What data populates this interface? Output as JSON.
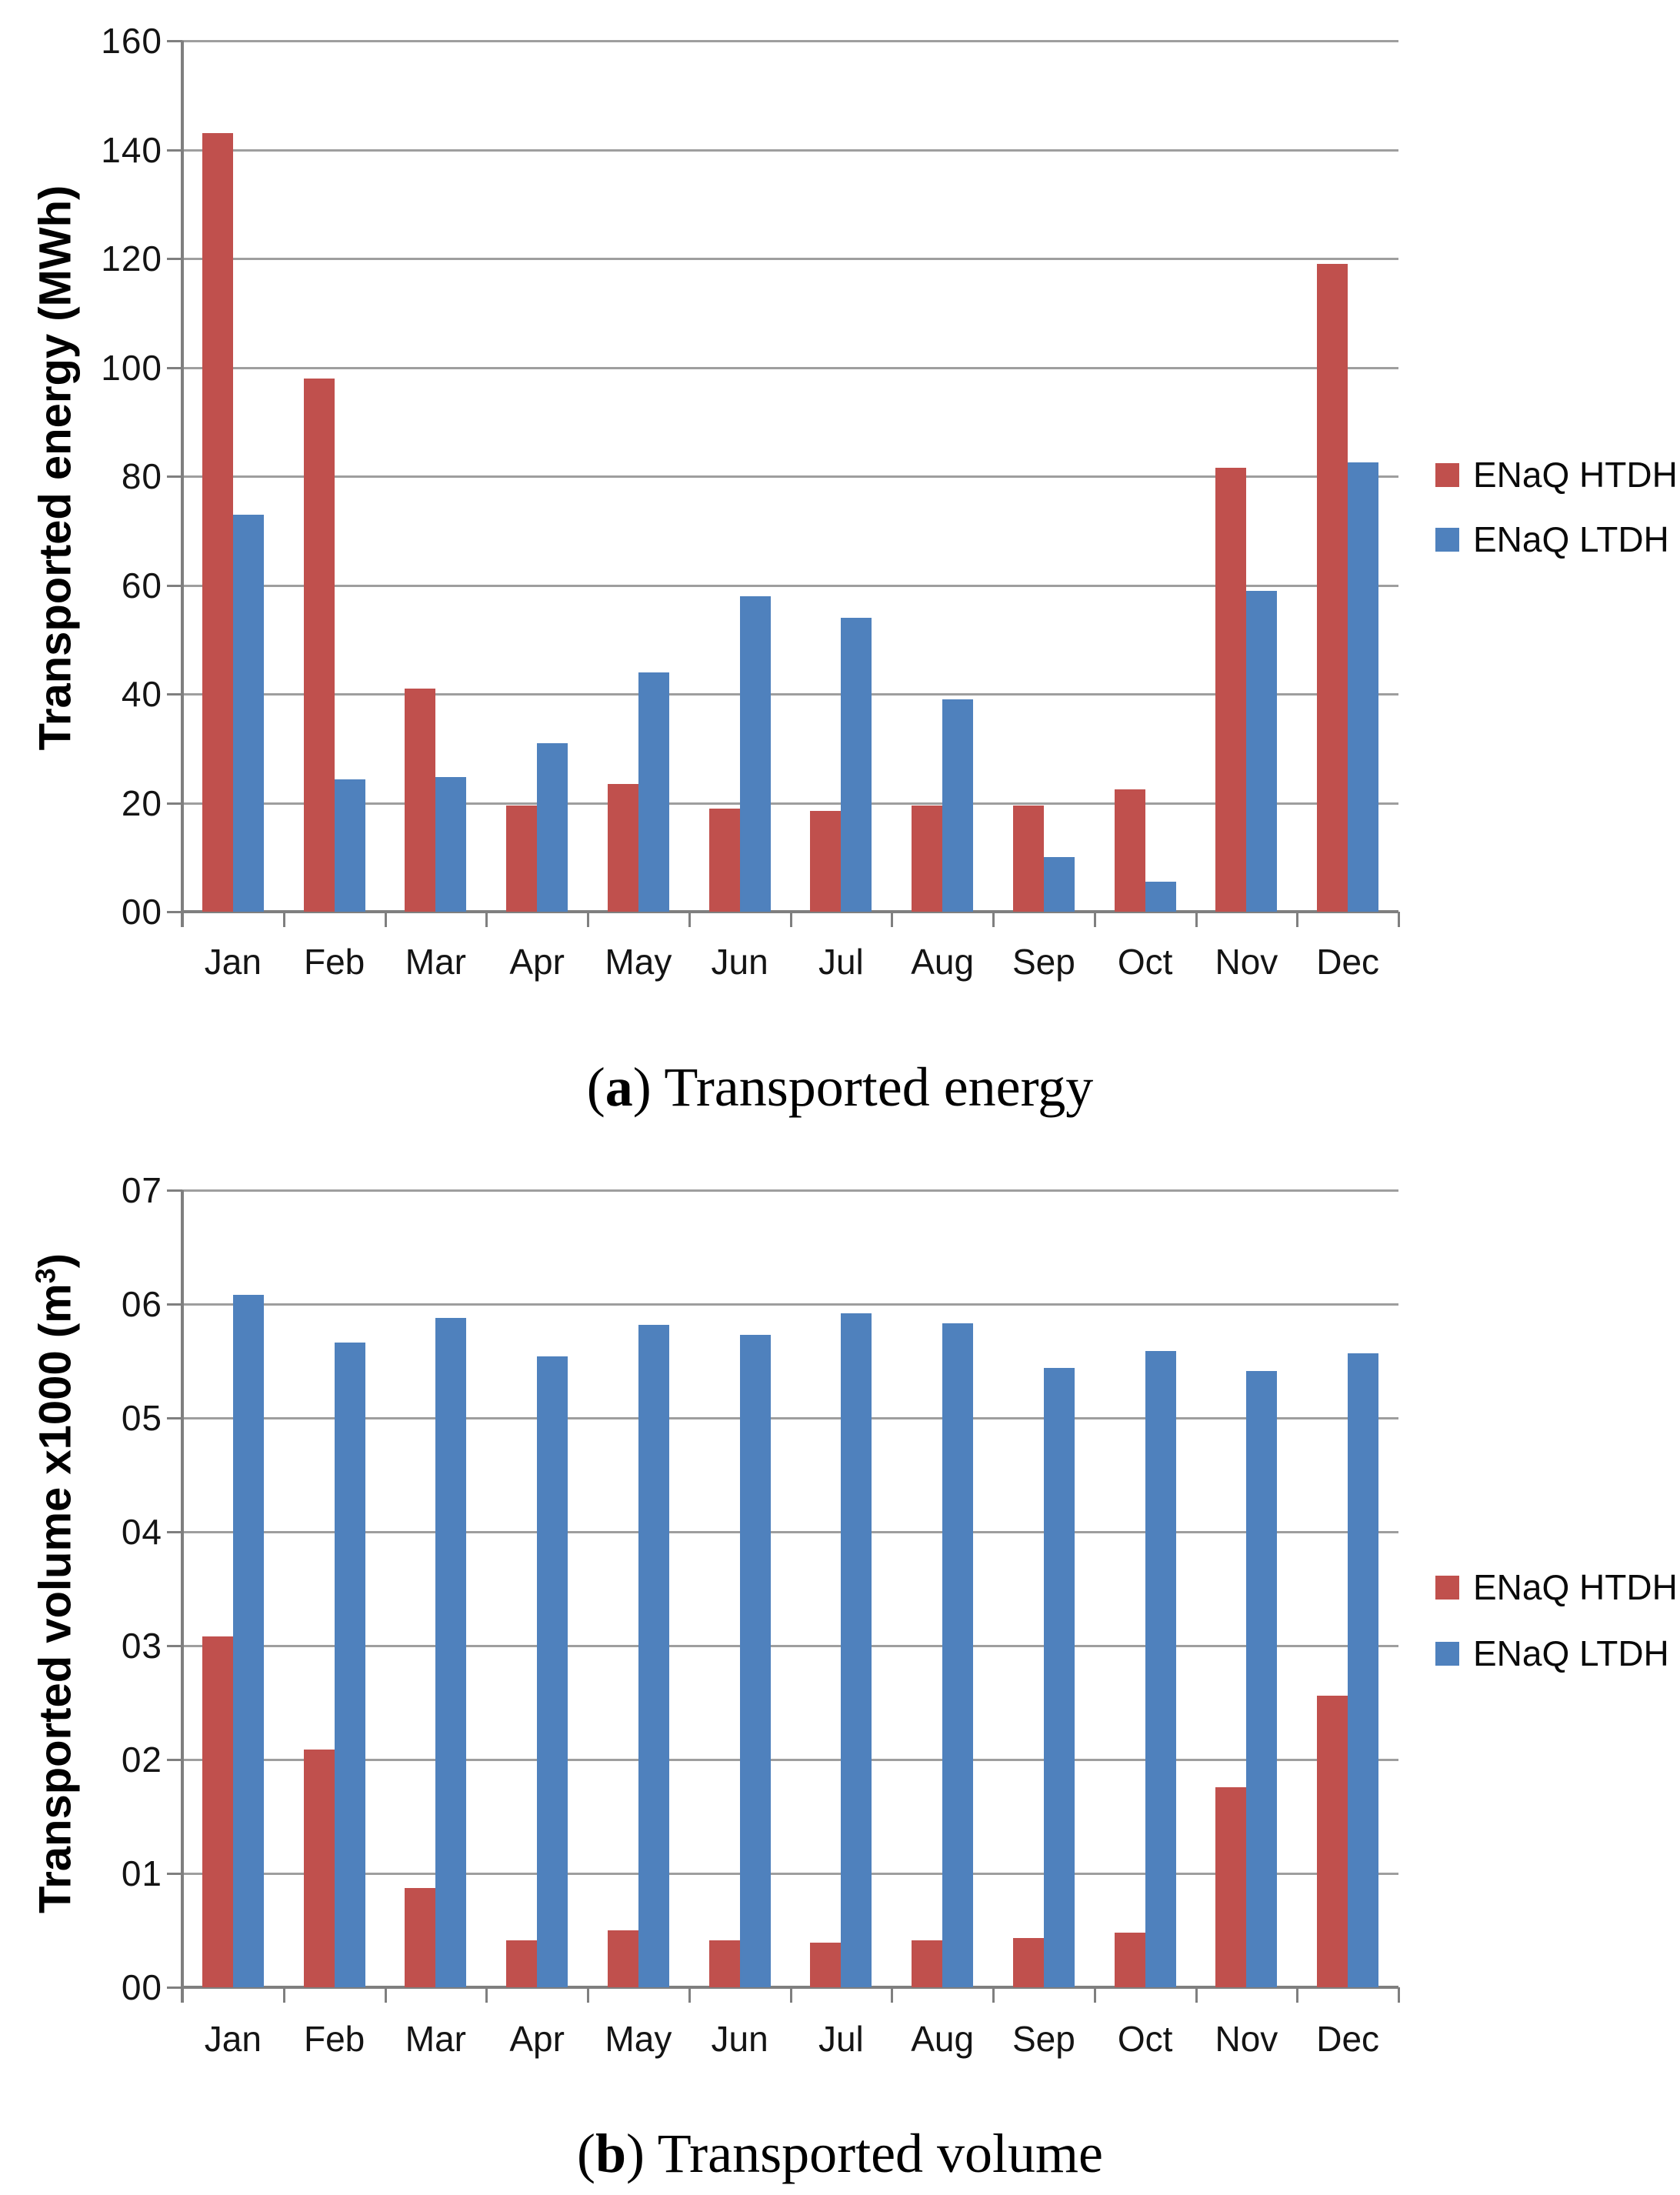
{
  "figure": {
    "background": "#FFFFFF"
  },
  "colors": {
    "htdh_red": "#C0504D",
    "ltdh_blue": "#4F81BD",
    "gridline": "#9E9E9E",
    "axis": "#808080",
    "text": "#141414"
  },
  "chart_data": [
    {
      "type": "bar",
      "panel": "a",
      "caption": {
        "open": "(",
        "letter": "a",
        "rest": ") Transported energy"
      },
      "ylabel": {
        "pre": "Transported energy (MWh)",
        "sup": "",
        "post": ""
      },
      "xlabel": "",
      "categories": [
        "Jan",
        "Feb",
        "Mar",
        "Apr",
        "May",
        "Jun",
        "Jul",
        "Aug",
        "Sep",
        "Oct",
        "Nov",
        "Dec"
      ],
      "series": [
        {
          "name": "ENaQ HTDH",
          "color": "#C0504D",
          "values": [
            143,
            98,
            41,
            19.5,
            23.5,
            19,
            18.5,
            19.5,
            19.5,
            22.5,
            81.5,
            119
          ]
        },
        {
          "name": "ENaQ LTDH",
          "color": "#4F81BD",
          "values": [
            73,
            24.3,
            24.8,
            31,
            44,
            58,
            54,
            39,
            10,
            5.5,
            59,
            82.5
          ]
        }
      ],
      "ylim": [
        0,
        160
      ],
      "ytick_step": 20,
      "ytick_labels_top_to_bottom": [
        "160",
        "140",
        "120",
        "100",
        "80",
        "60",
        "40",
        "20",
        "00"
      ],
      "grid": true,
      "legend_position": "right"
    },
    {
      "type": "bar",
      "panel": "b",
      "caption": {
        "open": "(",
        "letter": "b",
        "rest": ") Transported volume"
      },
      "ylabel": {
        "pre": "Transported volume  x1000 (m",
        "sup": "3",
        "post": ")"
      },
      "xlabel": "",
      "categories": [
        "Jan",
        "Feb",
        "Mar",
        "Apr",
        "May",
        "Jun",
        "Jul",
        "Aug",
        "Sep",
        "Oct",
        "Nov",
        "Dec"
      ],
      "series": [
        {
          "name": "ENaQ HTDH",
          "color": "#C0504D",
          "values": [
            3.08,
            2.09,
            0.87,
            0.41,
            0.5,
            0.41,
            0.39,
            0.41,
            0.43,
            0.48,
            1.76,
            2.56
          ]
        },
        {
          "name": "ENaQ LTDH",
          "color": "#4F81BD",
          "values": [
            6.08,
            5.66,
            5.88,
            5.54,
            5.82,
            5.73,
            5.92,
            5.83,
            5.44,
            5.59,
            5.41,
            5.57
          ]
        }
      ],
      "ylim": [
        0,
        7
      ],
      "ytick_step": 1,
      "ytick_labels_top_to_bottom": [
        "07",
        "06",
        "05",
        "04",
        "03",
        "02",
        "01",
        "00"
      ],
      "grid": true,
      "legend_position": "right"
    }
  ]
}
